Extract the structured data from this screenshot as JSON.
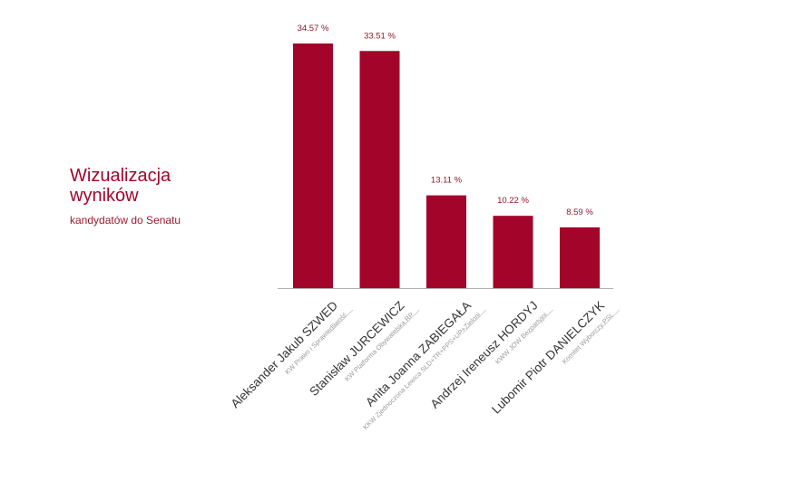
{
  "title": {
    "line1": "Wizualizacja",
    "line2": "wyników",
    "subtitle": "kandydatów do Senatu"
  },
  "colors": {
    "bar": "#a3042a",
    "title": "#a3042a",
    "axis": "#b0b0b0"
  },
  "chart_data": {
    "type": "bar",
    "ylim": [
      0,
      34.57
    ],
    "grid": false,
    "categories": [
      "Aleksander Jakub SZWED",
      "Stanisław JURCEWICZ",
      "Anita Joanna ZABIEGAŁA",
      "Andrzej Ireneusz HORDYJ",
      "Lubomir Piotr DANIELCZYK"
    ],
    "parties": [
      "KW Prawo i Sprawiedliwość",
      "KW Platforma Obywatelska RP",
      "KKW Zjednoczona Lewica SLD+TR+PPS+UP+Zieloni",
      "KWW JOW Bezpartyjni",
      "Komitet Wyborczy PSL"
    ],
    "values": [
      34.57,
      33.51,
      13.11,
      10.22,
      8.59
    ],
    "value_labels": [
      "34.57 %",
      "33.51 %",
      "13.11 %",
      "10.22 %",
      "8.59 %"
    ]
  }
}
